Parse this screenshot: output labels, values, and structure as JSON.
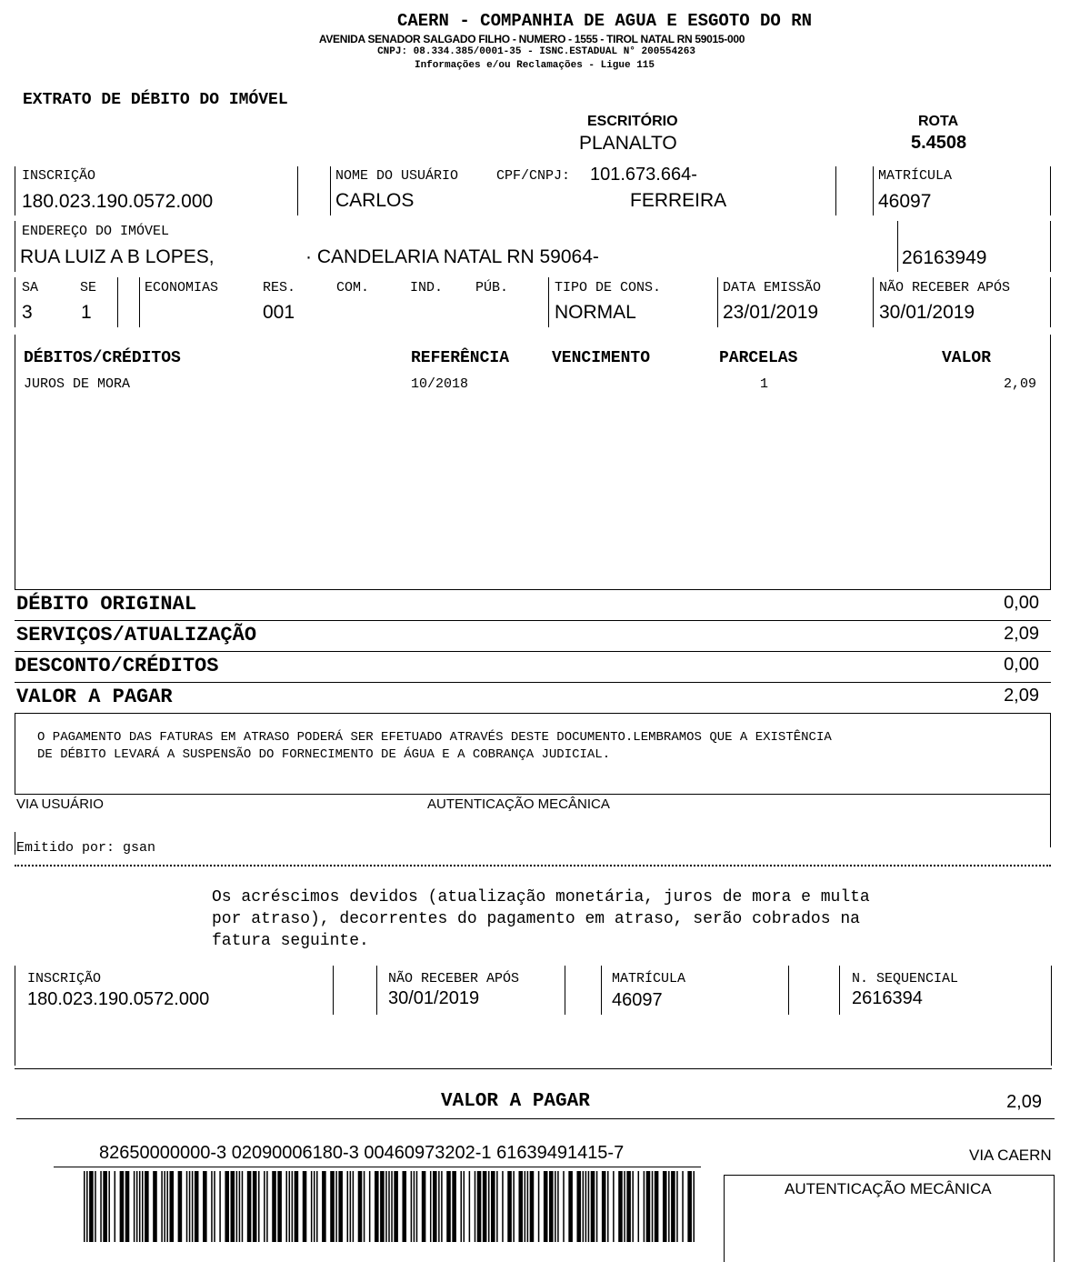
{
  "header": {
    "company": "CAERN - COMPANHIA DE AGUA E ESGOTO DO RN",
    "address": "AVENIDA SENADOR SALGADO FILHO - NUMERO - 1555 - TIROL NATAL RN 59015-000",
    "cnpj": "CNPJ: 08.334.385/0001-35 - ISNC.ESTADUAL N° 200554263",
    "info": "Informações e/ou Reclamações - Ligue 115"
  },
  "doc_title": "EXTRATO DE DÉBITO DO IMÓVEL",
  "escritorio": {
    "label": "ESCRITÓRIO",
    "value": "PLANALTO"
  },
  "rota": {
    "label": "ROTA",
    "value": "5.4508"
  },
  "inscricao": {
    "label": "INSCRIÇÃO",
    "value": "180.023.190.0572.000"
  },
  "usuario": {
    "label": "NOME DO USUÁRIO",
    "cpf_label": "CPF/CNPJ:",
    "cpf_value": "101.673.664-",
    "first": "CARLOS",
    "last": "FERREIRA"
  },
  "matricula": {
    "label": "MATRÍCULA",
    "value": "46097"
  },
  "endereco": {
    "label": "ENDEREÇO DO IMÓVEL",
    "street": "RUA  LUIZ A B LOPES,",
    "city": "· CANDELARIA NATAL RN 59064-",
    "code": "26163949"
  },
  "row3": {
    "sa": {
      "label": "SA",
      "value": "3"
    },
    "se": {
      "label": "SE",
      "value": "1"
    },
    "economias": "ECONOMIAS",
    "res": {
      "label": "RES.",
      "value": "001"
    },
    "com": "COM.",
    "ind": "IND.",
    "pub": "PÚB.",
    "tipo": {
      "label": "TIPO DE CONS.",
      "value": "NORMAL"
    },
    "emissao": {
      "label": "DATA EMISSÃO",
      "value": "23/01/2019"
    },
    "nao_receber": {
      "label": "NÃO RECEBER APÓS",
      "value": "30/01/2019"
    }
  },
  "debts": {
    "headers": [
      "DÉBITOS/CRÉDITOS",
      "REFERÊNCIA",
      "VENCIMENTO",
      "PARCELAS",
      "VALOR"
    ],
    "rows": [
      {
        "desc": "JUROS DE MORA",
        "ref": "10/2018",
        "venc": "",
        "parcelas": "1",
        "valor": "2,09"
      }
    ]
  },
  "totals": [
    {
      "label": "DÉBITO ORIGINAL",
      "value": "0,00"
    },
    {
      "label": "SERVIÇOS/ATUALIZAÇÃO",
      "value": "2,09"
    },
    {
      "label": "DESCONTO/CRÉDITOS",
      "value": "0,00"
    },
    {
      "label": "VALOR A PAGAR",
      "value": "2,09"
    }
  ],
  "notice": [
    "O PAGAMENTO DAS FATURAS EM ATRASO PODERÁ SER EFETUADO ATRAVÉS DESTE DOCUMENTO.LEMBRAMOS QUE A EXISTÊNCIA",
    "DE DÉBITO LEVARÁ A SUSPENSÃO DO FORNECIMENTO DE ÁGUA E A COBRANÇA JUDICIAL."
  ],
  "via_usuario": "VIA USUÁRIO",
  "autenticacao": "AUTENTICAÇÃO MECÂNICA",
  "emitido": "Emitido por: gsan",
  "acrescimos": [
    "Os acréscimos devidos (atualização monetária, juros de mora e multa",
    "por atraso), decorrentes do pagamento em atraso, serão cobrados na",
    "fatura seguinte."
  ],
  "stub": {
    "inscricao": {
      "label": "INSCRIÇÃO",
      "value": "180.023.190.0572.000"
    },
    "nao_receber": {
      "label": "NÃO RECEBER APÓS",
      "value": "30/01/2019"
    },
    "matricula": {
      "label": "MATRÍCULA",
      "value": "46097"
    },
    "sequencial": {
      "label": "N. SEQUENCIAL",
      "value": "2616394"
    },
    "valor_label": "VALOR A PAGAR",
    "valor": "2,09",
    "barcode_digits": "82650000000-3 02090006180-3 00460973202-1 61639491415-7",
    "via_caern": "VIA CAERN",
    "autenticacao": "AUTENTICAÇÃO MECÂNICA"
  }
}
